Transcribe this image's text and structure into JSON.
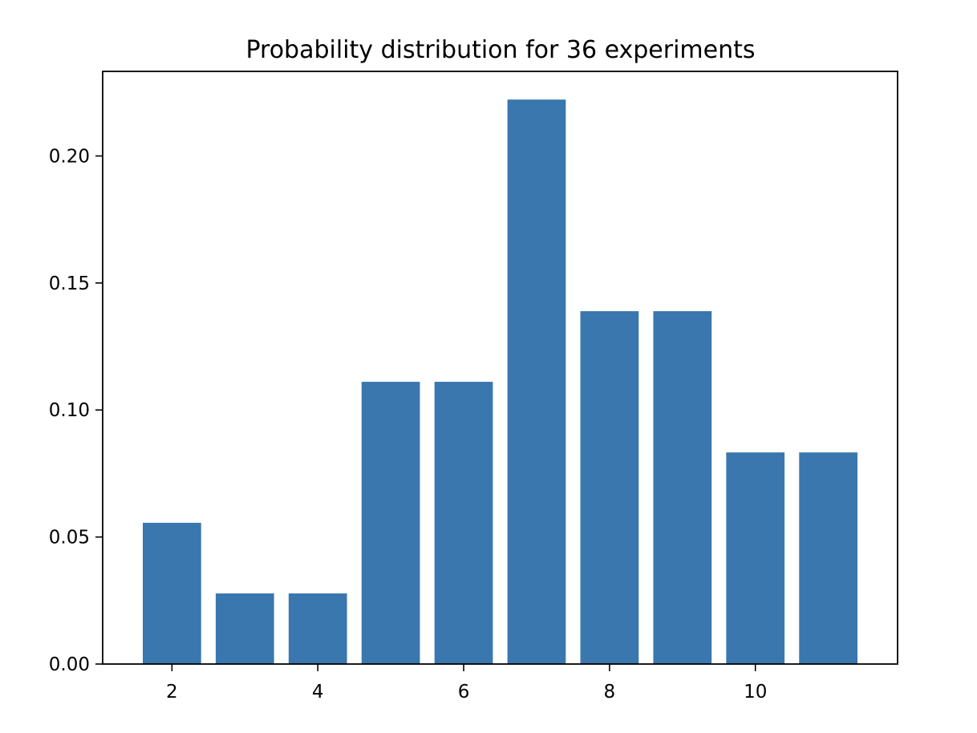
{
  "chart_data": {
    "type": "bar",
    "title": "Probability distribution for 36 experiments",
    "xlabel": "",
    "ylabel": "",
    "x": [
      2,
      3,
      4,
      5,
      6,
      7,
      8,
      9,
      10,
      11
    ],
    "values": [
      0.0556,
      0.0278,
      0.0278,
      0.1111,
      0.1111,
      0.2222,
      0.1389,
      0.1389,
      0.0833,
      0.0833
    ],
    "xlim": [
      1.05,
      11.95
    ],
    "ylim": [
      0,
      0.2333
    ],
    "xticks": [
      2,
      4,
      6,
      8,
      10
    ],
    "xtick_labels": [
      "2",
      "4",
      "6",
      "8",
      "10"
    ],
    "yticks": [
      0,
      0.05,
      0.1,
      0.15,
      0.2
    ],
    "ytick_labels": [
      "0.00",
      "0.05",
      "0.10",
      "0.15",
      "0.20"
    ],
    "bar_width": 0.8,
    "bar_color": "#3a77ae",
    "grid": false,
    "legend": "none"
  }
}
